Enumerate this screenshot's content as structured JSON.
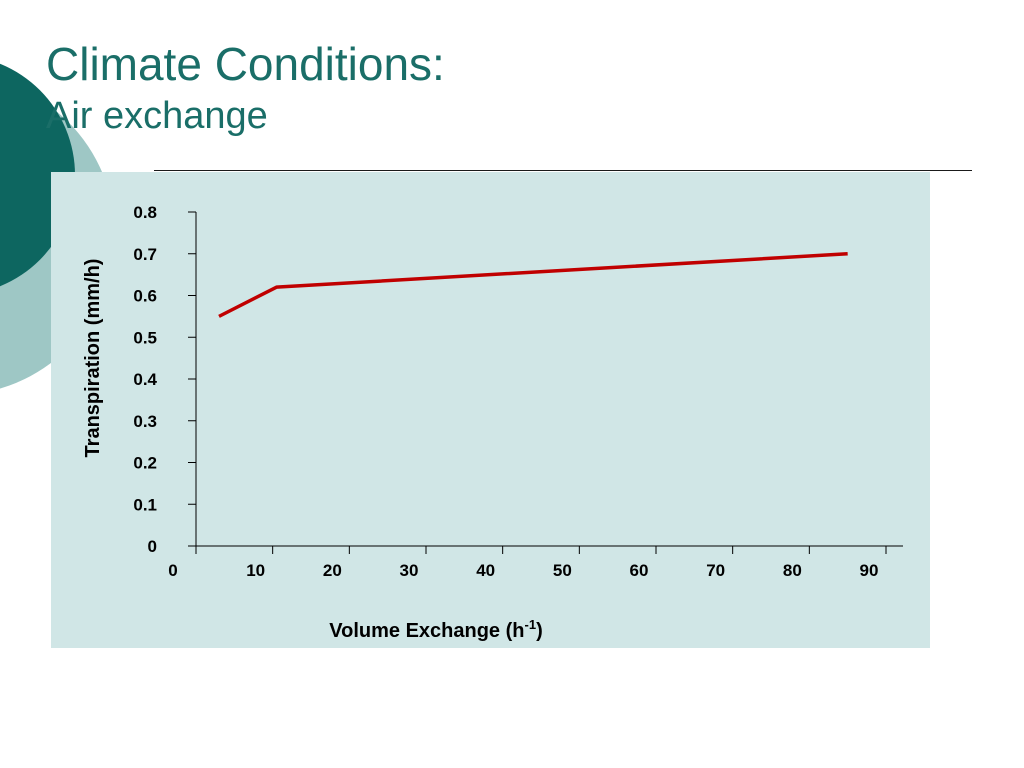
{
  "slide": {
    "title_line1": "Climate Conditions:",
    "title_line2": "Air exchange"
  },
  "colors": {
    "title": "#1a6e68",
    "panel_bg": "#d0e6e6",
    "deco_dark": "#0d6660",
    "deco_light": "#9ec7c5",
    "series": "#c00000"
  },
  "chart_data": {
    "type": "line",
    "xlabel_prefix": "Volume Exchange (h",
    "xlabel_sup": "-1",
    "xlabel_suffix": ")",
    "ylabel": "Transpiration (mm/h)",
    "xlim": [
      0,
      90
    ],
    "ylim": [
      0,
      0.8
    ],
    "x_ticks": [
      0,
      10,
      20,
      30,
      40,
      50,
      60,
      70,
      80,
      90
    ],
    "y_ticks": [
      0,
      0.1,
      0.2,
      0.3,
      0.4,
      0.5,
      0.6,
      0.7,
      0.8
    ],
    "y_tick_labels": [
      "0",
      "0.1",
      "0.2",
      "0.3",
      "0.4",
      "0.5",
      "0.6",
      "0.7",
      "0.8"
    ],
    "grid": false,
    "series": [
      {
        "x": [
          3,
          10.5,
          85
        ],
        "y": [
          0.55,
          0.62,
          0.7
        ]
      }
    ]
  }
}
